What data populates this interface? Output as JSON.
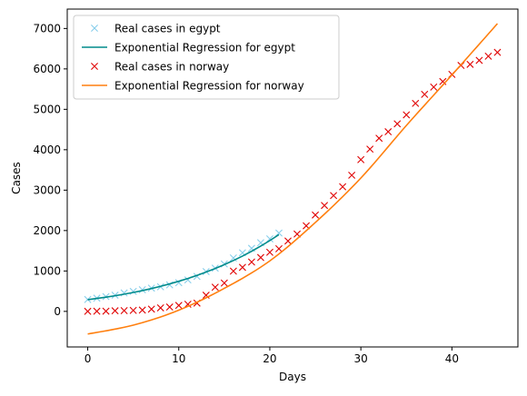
{
  "chart_data": {
    "type": "line",
    "title": "",
    "xlabel": "Days",
    "ylabel": "Cases",
    "xlim": [
      -2.25,
      47.25
    ],
    "ylim": [
      -880,
      7480
    ],
    "xticks": [
      0,
      10,
      20,
      30,
      40
    ],
    "yticks": [
      0,
      1000,
      2000,
      3000,
      4000,
      5000,
      6000,
      7000
    ],
    "grid": false,
    "legend_position": "top-left",
    "series": [
      {
        "name": "Real cases in egypt",
        "kind": "scatter",
        "marker": "x",
        "color": "#87ceeb",
        "x": [
          0,
          1,
          2,
          3,
          4,
          5,
          6,
          7,
          8,
          9,
          10,
          11,
          12,
          13,
          14,
          15,
          16,
          17,
          18,
          19,
          20,
          21
        ],
        "y": [
          294,
          327,
          366,
          402,
          456,
          495,
          536,
          576,
          609,
          656,
          710,
          779,
          865,
          985,
          1070,
          1173,
          1322,
          1450,
          1560,
          1699,
          1794,
          1939
        ]
      },
      {
        "name": "Exponential Regression for egypt",
        "kind": "line",
        "color": "#008b8b",
        "x": [
          0,
          1,
          2,
          3,
          4,
          5,
          6,
          7,
          8,
          9,
          10,
          11,
          12,
          13,
          14,
          15,
          16,
          17,
          18,
          19,
          20,
          21
        ],
        "y": [
          290,
          320,
          352,
          387,
          426,
          468,
          514,
          565,
          620,
          680,
          745,
          815,
          891,
          973,
          1061,
          1156,
          1259,
          1369,
          1488,
          1615,
          1752,
          1899
        ]
      },
      {
        "name": "Real cases in norway",
        "kind": "scatter",
        "marker": "x",
        "color": "#e00000",
        "x": [
          0,
          1,
          2,
          3,
          4,
          5,
          6,
          7,
          8,
          9,
          10,
          11,
          12,
          13,
          14,
          15,
          16,
          17,
          18,
          19,
          20,
          21,
          22,
          23,
          24,
          25,
          26,
          27,
          28,
          29,
          30,
          31,
          32,
          33,
          34,
          35,
          36,
          37,
          38,
          39,
          40,
          41,
          42,
          43,
          44,
          45
        ],
        "y": [
          1,
          4,
          6,
          15,
          19,
          25,
          32,
          56,
          87,
          108,
          147,
          176,
          205,
          400,
          598,
          702,
          996,
          1090,
          1221,
          1333,
          1463,
          1550,
          1742,
          1914,
          2118,
          2385,
          2621,
          2866,
          3084,
          3369,
          3755,
          4015,
          4284,
          4445,
          4641,
          4863,
          5147,
          5370,
          5550,
          5687,
          5865,
          6086,
          6113,
          6211,
          6314,
          6409
        ]
      },
      {
        "name": "Exponential Regression for norway",
        "kind": "line",
        "color": "#ff7f0e",
        "x": [
          0,
          5,
          10,
          15,
          20,
          25,
          30,
          35,
          40,
          45
        ],
        "y": [
          -560,
          -340,
          30,
          570,
          1250,
          2200,
          3300,
          4600,
          5850,
          7120
        ]
      }
    ]
  }
}
